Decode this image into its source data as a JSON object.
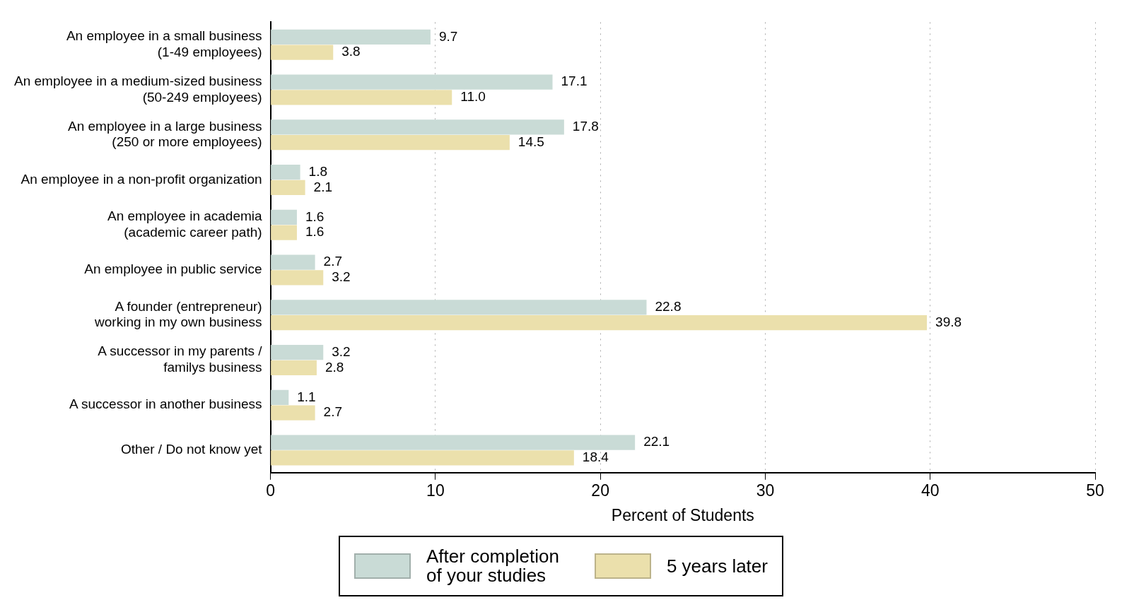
{
  "chart_data": {
    "type": "bar",
    "orientation": "horizontal",
    "xlabel": "Percent of Students",
    "categories": [
      "An employee in a small business\n(1-49 employees)",
      "An employee in a medium-sized business\n(50-249 employees)",
      "An employee in a large business\n(250 or more employees)",
      "An employee in a non-profit organization",
      "An employee in academia\n(academic career path)",
      "An employee in public service",
      "A founder (entrepreneur)\nworking in my own business",
      "A successor in my parents /\nfamilys business",
      "A successor in another business",
      "Other / Do not know yet"
    ],
    "series": [
      {
        "name": "After completion\nof your studies",
        "color": "#c9dbd6",
        "values": [
          9.7,
          17.1,
          17.8,
          1.8,
          1.6,
          2.7,
          22.8,
          3.2,
          1.1,
          22.1
        ]
      },
      {
        "name": "5 years later",
        "color": "#ebe0ac",
        "values": [
          3.8,
          11.0,
          14.5,
          2.1,
          1.6,
          3.2,
          39.8,
          2.8,
          2.7,
          18.4
        ]
      }
    ],
    "value_labels": [
      [
        "9.7",
        "17.1",
        "17.8",
        "1.8",
        "1.6",
        "2.7",
        "22.8",
        "3.2",
        "1.1",
        "22.1"
      ],
      [
        "3.8",
        "11.0",
        "14.5",
        "2.1",
        "1.6",
        "3.2",
        "39.8",
        "2.8",
        "2.7",
        "18.4"
      ]
    ],
    "xlim": [
      0,
      50
    ],
    "xticks": [
      0,
      10,
      20,
      30,
      40,
      50
    ],
    "grid": "x",
    "legend": "bottom"
  }
}
